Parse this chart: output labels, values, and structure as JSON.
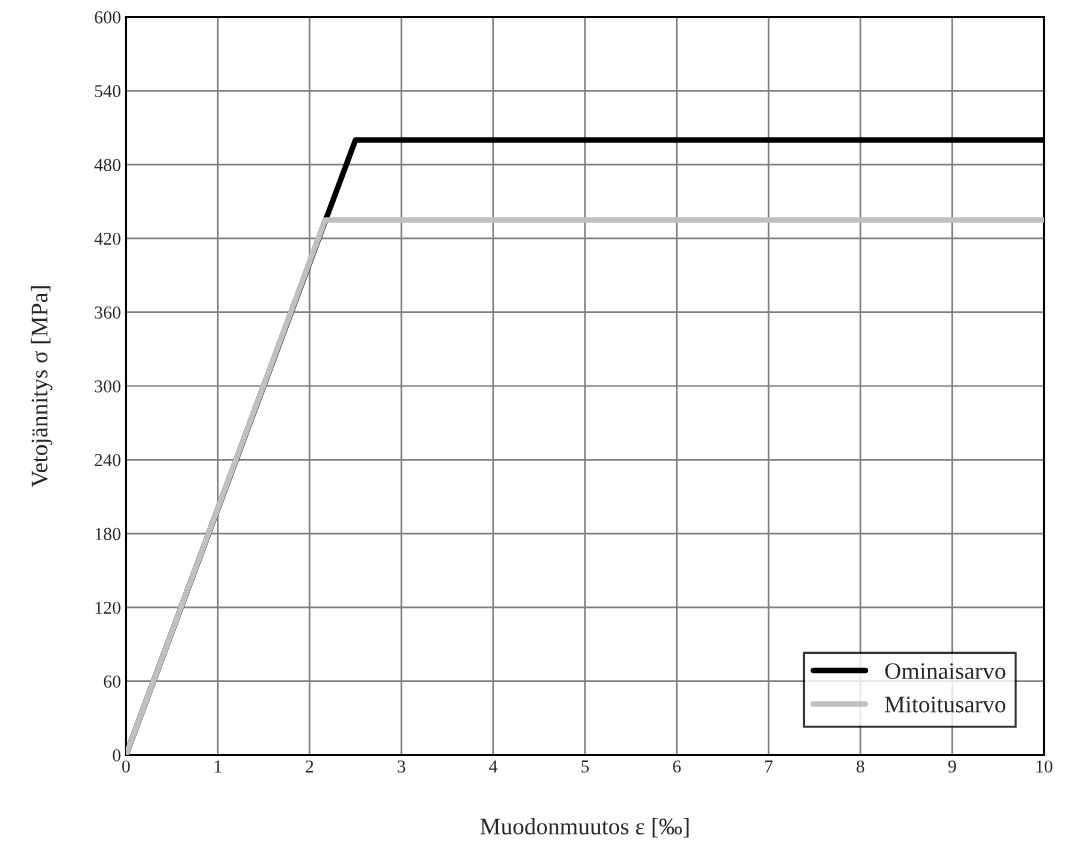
{
  "chart_data": {
    "type": "line",
    "xlabel": "Muodonmuutos ε [‰]",
    "ylabel": "Vetojännitys σ [MPa]",
    "xlim": [
      0,
      10
    ],
    "ylim": [
      0,
      600
    ],
    "xticks": [
      0,
      1,
      2,
      3,
      4,
      5,
      6,
      7,
      8,
      9,
      10
    ],
    "yticks": [
      0,
      60,
      120,
      180,
      240,
      300,
      360,
      420,
      480,
      540,
      600
    ],
    "grid": true,
    "legend": "bottom right",
    "line_style": "solid",
    "marker": "none",
    "series": [
      {
        "name": "Ominaisarvo",
        "color": "#000000",
        "x": [
          0,
          2.5,
          10
        ],
        "values": [
          0,
          500,
          500
        ]
      },
      {
        "name": "Mitoitusarvo",
        "color": "#c0c0c0",
        "x": [
          0,
          2.17,
          10
        ],
        "values": [
          0,
          435,
          435
        ]
      }
    ]
  }
}
